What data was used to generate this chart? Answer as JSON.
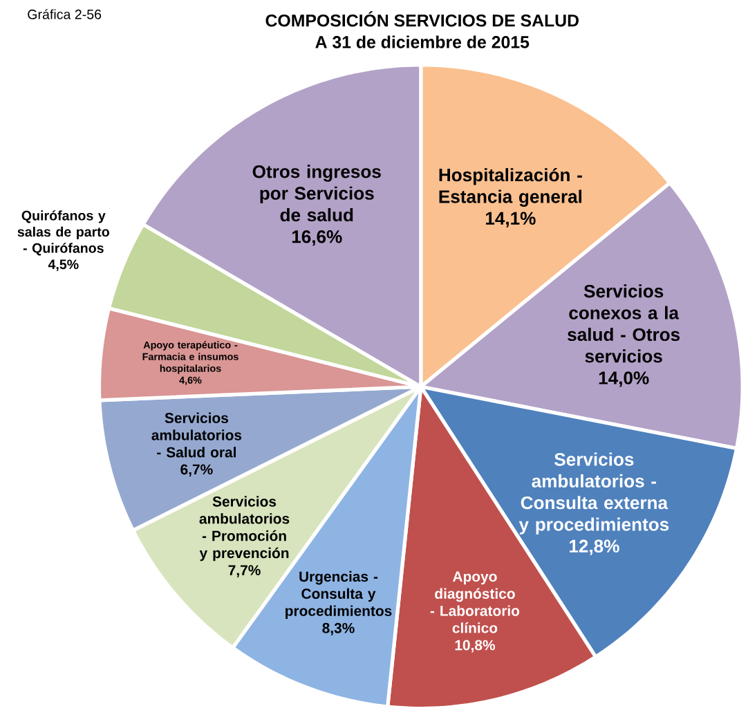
{
  "chart_data": {
    "type": "pie",
    "title": "COMPOSICIÓN SERVICIOS DE SALUD",
    "subtitle": "A 31 de diciembre de 2015",
    "categories": [
      "Hospitalización - Estancia general",
      "Servicios conexos a la salud - Otros servicios",
      "Servicios ambulatorios - Consulta externa y procedimientos",
      "Apoyo diagnóstico - Laboratorio clínico",
      "Urgencias - Consulta y procedimientos",
      "Servicios ambulatorios - Promoción y prevención",
      "Servicios ambulatorios - Salud oral",
      "Apoyo terapéutico - Farmacia e insumos hospitalarios",
      "Quirófanos y salas de parto - Quirófanos",
      "Otros ingresos por Servicios de salud"
    ],
    "values": [
      14.1,
      14.0,
      12.8,
      10.8,
      8.3,
      7.7,
      6.7,
      4.6,
      4.5,
      16.6
    ],
    "value_labels": [
      "14,1%",
      "14,0%",
      "12,8%",
      "10,8%",
      "8,3%",
      "7,7%",
      "6,7%",
      "4,6%",
      "4,5%",
      "16,6%"
    ],
    "colors": [
      "#fac090",
      "#b3a2c7",
      "#4f81bd",
      "#c0504d",
      "#8eb4e3",
      "#d7e4bd",
      "#95a9d0",
      "#d99694",
      "#c3d69b",
      "#b3a2c7"
    ],
    "annotations": [
      "Gráfica 2-56"
    ]
  }
}
